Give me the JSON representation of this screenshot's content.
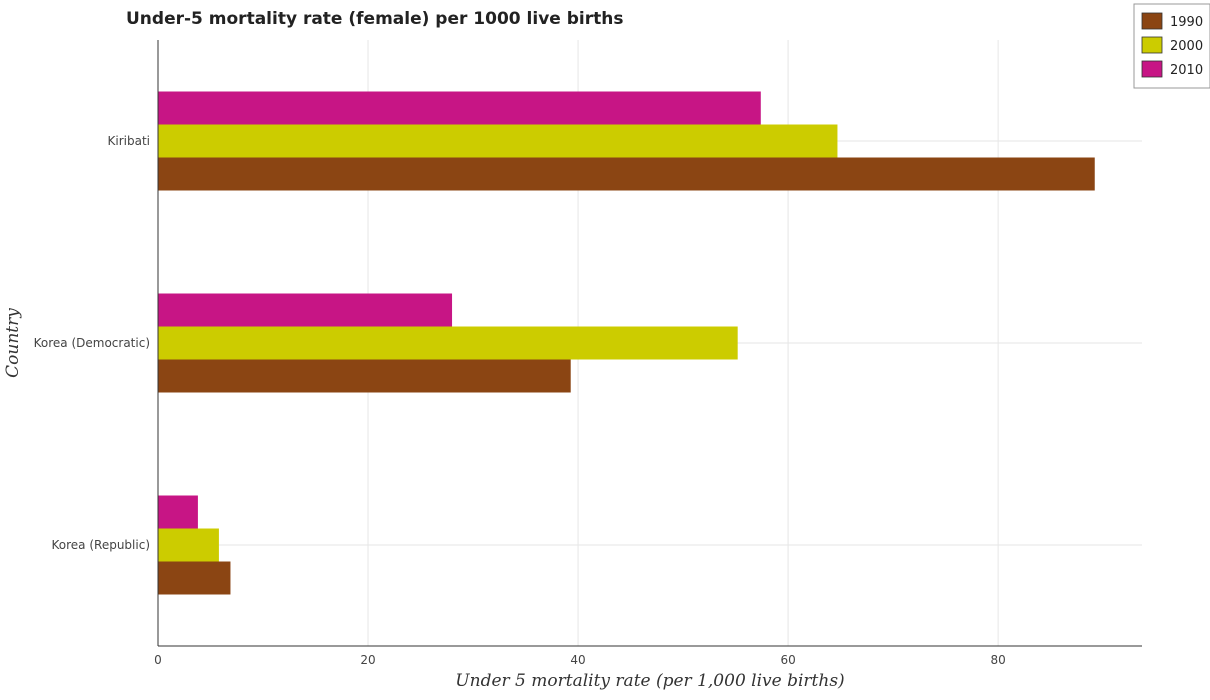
{
  "chart_data": {
    "type": "bar",
    "orientation": "horizontal",
    "title": "Under-5 mortality rate (female) per 1000 live births",
    "xlabel": "Under 5 mortality rate (per 1,000 live births)",
    "ylabel": "Country",
    "categories": [
      "Kiribati",
      "Korea (Democratic)",
      "Korea (Republic)"
    ],
    "series": [
      {
        "name": "1990",
        "color": "#8B4513",
        "values": [
          89.2,
          39.3,
          6.9
        ]
      },
      {
        "name": "2000",
        "color": "#CCCC00",
        "values": [
          64.7,
          55.2,
          5.8
        ]
      },
      {
        "name": "2010",
        "color": "#C71585",
        "values": [
          57.4,
          28.0,
          3.8
        ]
      }
    ],
    "xlim": [
      0,
      93.7
    ],
    "xticks": [
      0,
      20,
      40,
      60,
      80
    ],
    "grid": true,
    "legend_position": "top-right"
  }
}
